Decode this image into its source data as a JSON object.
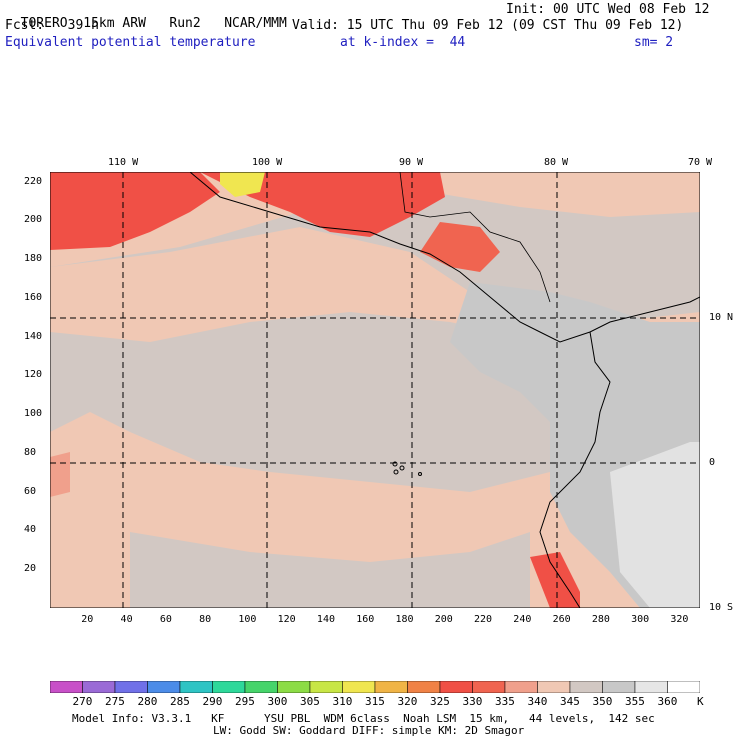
{
  "header": {
    "model": "TORERO",
    "resolution": "15km ARW",
    "run": "Run2",
    "org": "NCAR/MMM",
    "init": "Init: 00 UTC Wed 08 Feb 12",
    "fcst_label": "Fcst:",
    "fcst_hours": "39 h",
    "valid": "Valid: 15 UTC Thu 09 Feb 12 (09 CST Thu 09 Feb 12)",
    "field": "Equivalent potential temperature",
    "level": "at k-index =  44",
    "smooth": "sm= 2"
  },
  "map": {
    "lon_labels": [
      "110 W",
      "100 W",
      "90 W",
      "80 W",
      "70 W"
    ],
    "lat_labels": [
      "10 N",
      "0",
      "10 S"
    ],
    "y_ticks": [
      "220",
      "200",
      "180",
      "160",
      "140",
      "120",
      "100",
      "80",
      "60",
      "40",
      "20"
    ],
    "x_ticks": [
      "20",
      "40",
      "60",
      "80",
      "100",
      "120",
      "140",
      "160",
      "180",
      "200",
      "220",
      "240",
      "260",
      "280",
      "300",
      "320"
    ],
    "x_range": [
      0,
      331
    ],
    "y_range": [
      0,
      225
    ],
    "gridlines": "dashed"
  },
  "colorbar": {
    "levels": [
      "270",
      "275",
      "280",
      "285",
      "290",
      "295",
      "300",
      "305",
      "310",
      "315",
      "320",
      "325",
      "330",
      "335",
      "340",
      "345",
      "350",
      "355",
      "360"
    ],
    "unit": "K",
    "colors": [
      "#c850c8",
      "#9a6ad6",
      "#7070e8",
      "#4c8ce8",
      "#2ec4c4",
      "#2ed89a",
      "#46d46a",
      "#8cdc46",
      "#c8e646",
      "#f0e650",
      "#f0b446",
      "#f08246",
      "#f05046",
      "#f06450",
      "#f0a08c",
      "#f0c8b4",
      "#d2c8c3",
      "#c8c8c8",
      "#e6e6e6",
      "#ffffff"
    ]
  },
  "footer": {
    "line1": "Model Info: V3.3.1   KF      YSU PBL  WDM 6class  Noah LSM  15 km,   44 levels,  142 sec",
    "line2": "LW: Godd SW: Goddard DIFF: simple KM: 2D Smagor"
  }
}
